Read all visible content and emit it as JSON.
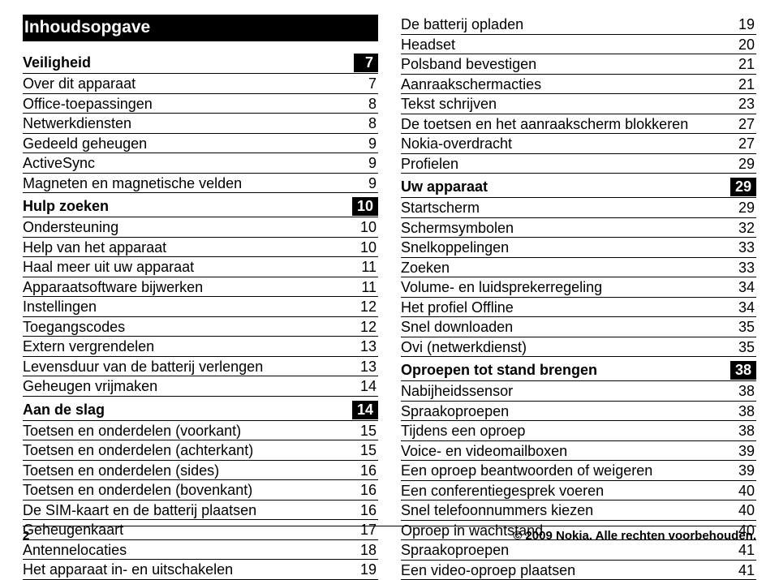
{
  "title": "Inhoudsopgave",
  "footer": {
    "page": "2",
    "copyright": "© 2009 Nokia. Alle rechten voorbehouden."
  },
  "style": {
    "bg": "#ffffff",
    "text": "#000000",
    "header_bg": "#000000",
    "header_fg": "#ffffff",
    "font_family": "Arial Narrow, Arial, sans-serif",
    "title_fontsize": 21,
    "row_fontsize": 18,
    "footer_fontsize": 15,
    "rule_color": "#000000"
  },
  "columns": [
    {
      "blocks": [
        {
          "type": "title"
        },
        {
          "type": "section",
          "label": "Veiligheid",
          "page": "7"
        },
        {
          "type": "row",
          "label": "Over dit apparaat",
          "page": "7"
        },
        {
          "type": "row",
          "label": "Office-toepassingen",
          "page": "8"
        },
        {
          "type": "row",
          "label": "Netwerkdiensten",
          "page": "8"
        },
        {
          "type": "row",
          "label": "Gedeeld geheugen",
          "page": "9"
        },
        {
          "type": "row",
          "label": "ActiveSync",
          "page": "9"
        },
        {
          "type": "row",
          "label": "Magneten en magnetische velden",
          "page": "9"
        },
        {
          "type": "section",
          "label": "Hulp zoeken",
          "page": "10"
        },
        {
          "type": "row",
          "label": "Ondersteuning",
          "page": "10"
        },
        {
          "type": "row",
          "label": "Help van het apparaat",
          "page": "10"
        },
        {
          "type": "row",
          "label": "Haal meer uit uw apparaat",
          "page": "11"
        },
        {
          "type": "row",
          "label": "Apparaatsoftware bijwerken",
          "page": "11"
        },
        {
          "type": "row",
          "label": "Instellingen",
          "page": "12"
        },
        {
          "type": "row",
          "label": "Toegangscodes",
          "page": "12"
        },
        {
          "type": "row",
          "label": "Extern vergrendelen",
          "page": "13"
        },
        {
          "type": "row",
          "label": "Levensduur van de batterij verlengen",
          "page": "13"
        },
        {
          "type": "row",
          "label": "Geheugen vrijmaken",
          "page": "14"
        },
        {
          "type": "section",
          "label": "Aan de slag",
          "page": "14"
        },
        {
          "type": "row",
          "label": "Toetsen en onderdelen (voorkant)",
          "page": "15"
        },
        {
          "type": "row",
          "label": "Toetsen en onderdelen (achterkant)",
          "page": "15"
        },
        {
          "type": "row",
          "label": "Toetsen en onderdelen (sides)",
          "page": "16"
        },
        {
          "type": "row",
          "label": "Toetsen en onderdelen (bovenkant)",
          "page": "16"
        },
        {
          "type": "row",
          "label": "De SIM-kaart en de batterij plaatsen",
          "page": "16"
        },
        {
          "type": "row",
          "label": "Geheugenkaart",
          "page": "17"
        },
        {
          "type": "row",
          "label": "Antennelocaties",
          "page": "18"
        },
        {
          "type": "row",
          "label": "Het apparaat in- en uitschakelen",
          "page": "19"
        }
      ]
    },
    {
      "blocks": [
        {
          "type": "row",
          "label": "De batterij opladen",
          "page": "19"
        },
        {
          "type": "row",
          "label": "Headset",
          "page": "20"
        },
        {
          "type": "row",
          "label": "Polsband bevestigen",
          "page": "21"
        },
        {
          "type": "row",
          "label": "Aanraakschermacties",
          "page": "21"
        },
        {
          "type": "row",
          "label": "Tekst schrijven",
          "page": "23"
        },
        {
          "type": "row",
          "label": "De toetsen en het aanraakscherm blokkeren",
          "page": "27"
        },
        {
          "type": "row",
          "label": "Nokia-overdracht",
          "page": "27"
        },
        {
          "type": "row",
          "label": "Profielen",
          "page": "29"
        },
        {
          "type": "section",
          "label": "Uw apparaat",
          "page": "29"
        },
        {
          "type": "row",
          "label": "Startscherm",
          "page": "29"
        },
        {
          "type": "row",
          "label": "Schermsymbolen",
          "page": "32"
        },
        {
          "type": "row",
          "label": "Snelkoppelingen",
          "page": "33"
        },
        {
          "type": "row",
          "label": "Zoeken",
          "page": "33"
        },
        {
          "type": "row",
          "label": "Volume- en luidsprekerregeling",
          "page": "34"
        },
        {
          "type": "row",
          "label": "Het profiel Offline",
          "page": "34"
        },
        {
          "type": "row",
          "label": "Snel downloaden",
          "page": "35"
        },
        {
          "type": "row",
          "label": "Ovi (netwerkdienst)",
          "page": "35"
        },
        {
          "type": "section",
          "label": "Oproepen tot stand brengen",
          "page": "38"
        },
        {
          "type": "row",
          "label": "Nabijheidssensor",
          "page": "38"
        },
        {
          "type": "row",
          "label": "Spraakoproepen",
          "page": "38"
        },
        {
          "type": "row",
          "label": "Tijdens een oproep",
          "page": "38"
        },
        {
          "type": "row",
          "label": "Voice- en videomailboxen",
          "page": "39"
        },
        {
          "type": "row",
          "label": "Een oproep beantwoorden of weigeren",
          "page": "39"
        },
        {
          "type": "row",
          "label": "Een conferentiegesprek voeren",
          "page": "40"
        },
        {
          "type": "row",
          "label": "Snel telefoonnummers kiezen",
          "page": "40"
        },
        {
          "type": "row",
          "label": "Oproep in wachtstand",
          "page": "40"
        },
        {
          "type": "row",
          "label": "Spraakoproepen",
          "page": "41"
        },
        {
          "type": "row",
          "label": "Een video-oproep plaatsen",
          "page": "41"
        }
      ]
    }
  ]
}
